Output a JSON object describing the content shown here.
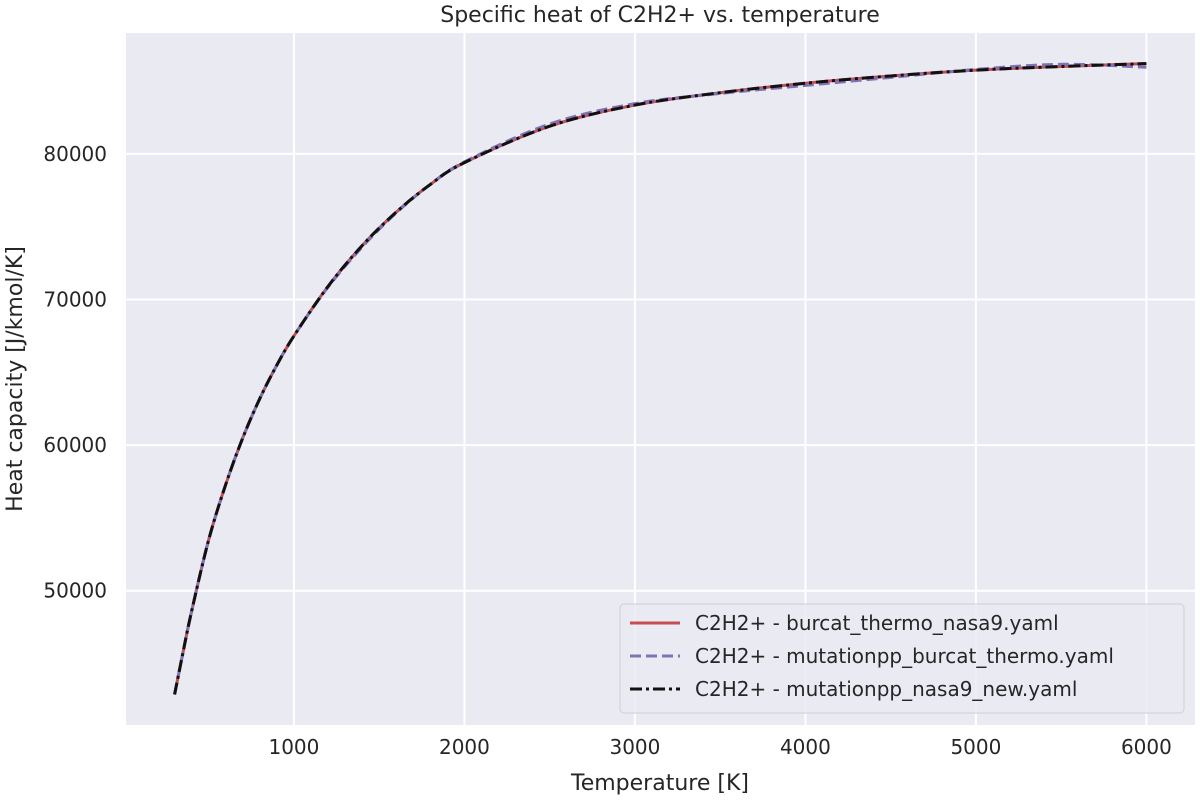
{
  "chart_data": {
    "type": "line",
    "title": "Specific heat of C2H2+ vs. temperature",
    "xlabel": "Temperature [K]",
    "ylabel": "Heat capacity [J/kmol/K]",
    "xlim": [
      15,
      6285
    ],
    "ylim": [
      40780,
      88300
    ],
    "xticks": [
      1000,
      2000,
      3000,
      4000,
      5000,
      6000
    ],
    "yticks": [
      50000,
      60000,
      70000,
      80000
    ],
    "grid": true,
    "background": "#EAEAF2",
    "legend_placement": "lower-right",
    "x": [
      300,
      350,
      400,
      500,
      600,
      700,
      800,
      900,
      1000,
      1200,
      1400,
      1600,
      1800,
      2000,
      2500,
      3000,
      3500,
      4000,
      4500,
      5000,
      5500,
      6000
    ],
    "series": [
      {
        "name": "C2H2+ - burcat_thermo_nasa9.yaml",
        "color": "#C44E52",
        "style": "solid",
        "values": [
          42880,
          45800,
          48600,
          53500,
          57300,
          60500,
          63200,
          65500,
          67500,
          70900,
          73700,
          76000,
          77900,
          79400,
          81900,
          83350,
          84200,
          84850,
          85350,
          85750,
          86000,
          86200
        ]
      },
      {
        "name": "C2H2+ - mutationpp_burcat_thermo.yaml",
        "color": "#8172B3",
        "style": "dashed",
        "values": [
          42880,
          45800,
          48600,
          53500,
          57300,
          60500,
          63200,
          65500,
          67500,
          70850,
          73600,
          75950,
          77900,
          79450,
          82050,
          83450,
          84150,
          84700,
          85250,
          85800,
          86150,
          85950
        ]
      },
      {
        "name": "C2H2+ - mutationpp_nasa9_new.yaml",
        "color": "#111111",
        "style": "dashdot",
        "values": [
          42880,
          45800,
          48600,
          53500,
          57300,
          60500,
          63200,
          65500,
          67500,
          70900,
          73700,
          76000,
          77900,
          79400,
          81900,
          83350,
          84200,
          84850,
          85350,
          85750,
          86000,
          86200
        ]
      }
    ]
  }
}
